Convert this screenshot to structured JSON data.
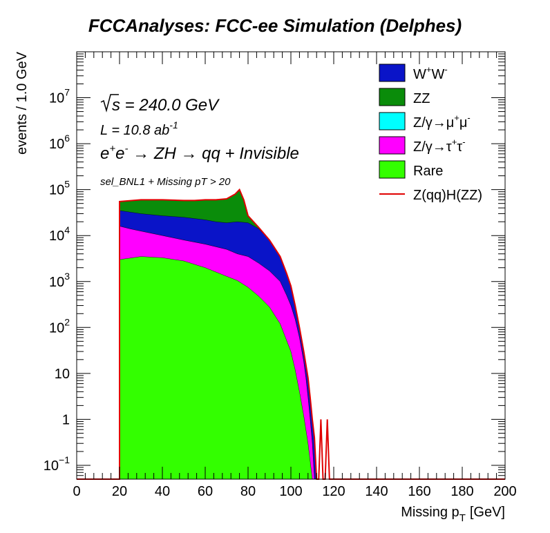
{
  "chart_data": {
    "type": "area",
    "title": "FCCAnalyses: FCC-ee Simulation (Delphes)",
    "xlabel": "Missing p_T [GeV]",
    "xlabel_main": "Missing p",
    "xlabel_sub": "T",
    "xlabel_unit": "[GeV]",
    "ylabel": "events / 1.0 GeV",
    "xlim": [
      0,
      200
    ],
    "ylim": [
      0.05,
      100000000
    ],
    "yscale": "log",
    "grid": false,
    "legend_position": "top-right",
    "x_ticks": [
      "0",
      "20",
      "40",
      "60",
      "80",
      "100",
      "120",
      "140",
      "160",
      "180",
      "200"
    ],
    "y_ticks": [
      {
        "value": 0.1,
        "base": "10",
        "exp": "−1"
      },
      {
        "value": 1,
        "base": "1",
        "exp": ""
      },
      {
        "value": 10,
        "base": "10",
        "exp": ""
      },
      {
        "value": 100,
        "base": "10",
        "exp": "2"
      },
      {
        "value": 1000,
        "base": "10",
        "exp": "3"
      },
      {
        "value": 10000,
        "base": "10",
        "exp": "4"
      },
      {
        "value": 100000,
        "base": "10",
        "exp": "5"
      },
      {
        "value": 1000000,
        "base": "10",
        "exp": "6"
      },
      {
        "value": 10000000,
        "base": "10",
        "exp": "7"
      }
    ],
    "annotations": {
      "sqrt_s": "s",
      "sqrt_s_rest": " = 240.0 GeV",
      "lumi_main": "L = 10.8 ab",
      "lumi_exp": "-1",
      "process_e1": "e",
      "process_p1": "+",
      "process_e2": "e",
      "process_p2": "-",
      "process_rest": " → ZH  → qq + Invisible",
      "selection": "sel_BNL1 + Missing pT > 20"
    },
    "legend": [
      {
        "key": "ww",
        "color": "#0a14c8",
        "style": "fill",
        "parts": [
          [
            "W",
            ""
          ],
          [
            "+",
            "sup"
          ],
          [
            "W",
            ""
          ],
          [
            "-",
            "sup"
          ]
        ]
      },
      {
        "key": "zz",
        "color": "#0a8c0a",
        "style": "fill",
        "parts": [
          [
            "ZZ",
            ""
          ]
        ]
      },
      {
        "key": "zmumu",
        "color": "#00ffff",
        "style": "fill",
        "parts": [
          [
            "Z/γ→μ",
            ""
          ],
          [
            "+",
            "sup"
          ],
          [
            "μ",
            ""
          ],
          [
            "-",
            "sup"
          ]
        ]
      },
      {
        "key": "ztautau",
        "color": "#ff00ff",
        "style": "fill",
        "parts": [
          [
            "Z/γ→τ",
            ""
          ],
          [
            "+",
            "sup"
          ],
          [
            "τ",
            ""
          ],
          [
            "-",
            "sup"
          ]
        ]
      },
      {
        "key": "rare",
        "color": "#33ff00",
        "style": "fill",
        "parts": [
          [
            "Rare",
            ""
          ]
        ]
      },
      {
        "key": "signal",
        "color": "#e00000",
        "style": "line",
        "parts": [
          [
            "Z(qq)H(ZZ)",
            ""
          ]
        ]
      }
    ],
    "series": [
      {
        "name": "Rare",
        "color": "#33ff00",
        "stack_top": [
          [
            20,
            3000
          ],
          [
            30,
            3500
          ],
          [
            40,
            3300
          ],
          [
            50,
            2800
          ],
          [
            60,
            2000
          ],
          [
            70,
            1300
          ],
          [
            75,
            1050
          ],
          [
            80,
            750
          ],
          [
            85,
            480
          ],
          [
            90,
            280
          ],
          [
            95,
            120
          ],
          [
            100,
            30
          ],
          [
            102,
            12
          ],
          [
            104,
            4
          ],
          [
            106,
            1.2
          ],
          [
            108,
            0.3
          ],
          [
            110,
            0.05
          ]
        ]
      },
      {
        "name": "Z/γ→τ+τ-",
        "color": "#ff00ff",
        "stack_top": [
          [
            20,
            16000
          ],
          [
            25,
            14000
          ],
          [
            30,
            12500
          ],
          [
            40,
            10000
          ],
          [
            50,
            8000
          ],
          [
            60,
            6500
          ],
          [
            70,
            5000
          ],
          [
            75,
            4000
          ],
          [
            80,
            3500
          ],
          [
            85,
            2500
          ],
          [
            90,
            1700
          ],
          [
            95,
            1000
          ],
          [
            98,
            500
          ],
          [
            100,
            300
          ],
          [
            102,
            150
          ],
          [
            104,
            60
          ],
          [
            106,
            18
          ],
          [
            107,
            8
          ],
          [
            108,
            3
          ],
          [
            109,
            1
          ],
          [
            110,
            0.3
          ],
          [
            111,
            0.05
          ]
        ]
      },
      {
        "name": "Z/γ→μ+μ-",
        "color": "#00ffff",
        "stack_top": [
          [
            20,
            16000
          ],
          [
            25,
            14000
          ],
          [
            30,
            12500
          ],
          [
            40,
            10000
          ],
          [
            50,
            8000
          ],
          [
            60,
            6500
          ],
          [
            70,
            5000
          ],
          [
            75,
            4000
          ],
          [
            80,
            3500
          ],
          [
            85,
            2500
          ],
          [
            90,
            1700
          ],
          [
            95,
            1000
          ],
          [
            98,
            500
          ],
          [
            100,
            300
          ],
          [
            102,
            150
          ],
          [
            104,
            60
          ],
          [
            106,
            18
          ],
          [
            107,
            8
          ],
          [
            108,
            3
          ],
          [
            109,
            1
          ],
          [
            110,
            0.3
          ],
          [
            111,
            0.05
          ]
        ]
      },
      {
        "name": "W+W-",
        "color": "#0a14c8",
        "stack_top": [
          [
            20,
            35000
          ],
          [
            30,
            30000
          ],
          [
            40,
            27000
          ],
          [
            50,
            25000
          ],
          [
            60,
            22000
          ],
          [
            65,
            20000
          ],
          [
            70,
            19000
          ],
          [
            75,
            20000
          ],
          [
            80,
            19000
          ],
          [
            85,
            14000
          ],
          [
            90,
            8000
          ],
          [
            95,
            3500
          ],
          [
            98,
            1500
          ],
          [
            100,
            800
          ],
          [
            102,
            300
          ],
          [
            104,
            100
          ],
          [
            106,
            30
          ],
          [
            108,
            8
          ],
          [
            109,
            3
          ],
          [
            110,
            1
          ],
          [
            111,
            0.4
          ],
          [
            112,
            0.05
          ]
        ]
      },
      {
        "name": "ZZ",
        "color": "#0a8c0a",
        "stack_top": [
          [
            20,
            55000
          ],
          [
            30,
            60000
          ],
          [
            40,
            60000
          ],
          [
            50,
            58000
          ],
          [
            55,
            58000
          ],
          [
            60,
            60000
          ],
          [
            65,
            60000
          ],
          [
            70,
            63000
          ],
          [
            74,
            80000
          ],
          [
            76,
            100000
          ],
          [
            78,
            60000
          ],
          [
            80,
            27000
          ],
          [
            85,
            15000
          ],
          [
            90,
            8000
          ],
          [
            95,
            3500
          ],
          [
            98,
            1500
          ],
          [
            100,
            800
          ],
          [
            102,
            300
          ],
          [
            104,
            100
          ],
          [
            106,
            30
          ],
          [
            108,
            8
          ],
          [
            109,
            3
          ],
          [
            110,
            1
          ],
          [
            111,
            0.4
          ],
          [
            112,
            0.05
          ]
        ]
      },
      {
        "name": "Z(qq)H(ZZ)",
        "color": "#e00000",
        "style": "line",
        "stack_top": [
          [
            0,
            0.05
          ],
          [
            20,
            0.05
          ],
          [
            20,
            55000
          ],
          [
            30,
            60000
          ],
          [
            40,
            60000
          ],
          [
            50,
            58000
          ],
          [
            55,
            58000
          ],
          [
            60,
            60000
          ],
          [
            65,
            60000
          ],
          [
            70,
            63000
          ],
          [
            74,
            80000
          ],
          [
            76,
            100000
          ],
          [
            78,
            60000
          ],
          [
            80,
            27000
          ],
          [
            85,
            15000
          ],
          [
            90,
            8000
          ],
          [
            95,
            3500
          ],
          [
            98,
            1500
          ],
          [
            100,
            800
          ],
          [
            102,
            300
          ],
          [
            104,
            100
          ],
          [
            106,
            30
          ],
          [
            108,
            8
          ],
          [
            109,
            3
          ],
          [
            110,
            1
          ],
          [
            111,
            0.4
          ],
          [
            112,
            0.05
          ],
          [
            113,
            0.05
          ],
          [
            114,
            1
          ],
          [
            115,
            0.05
          ],
          [
            116,
            0.05
          ],
          [
            117,
            1
          ],
          [
            118,
            0.05
          ],
          [
            200,
            0.05
          ]
        ]
      }
    ]
  }
}
